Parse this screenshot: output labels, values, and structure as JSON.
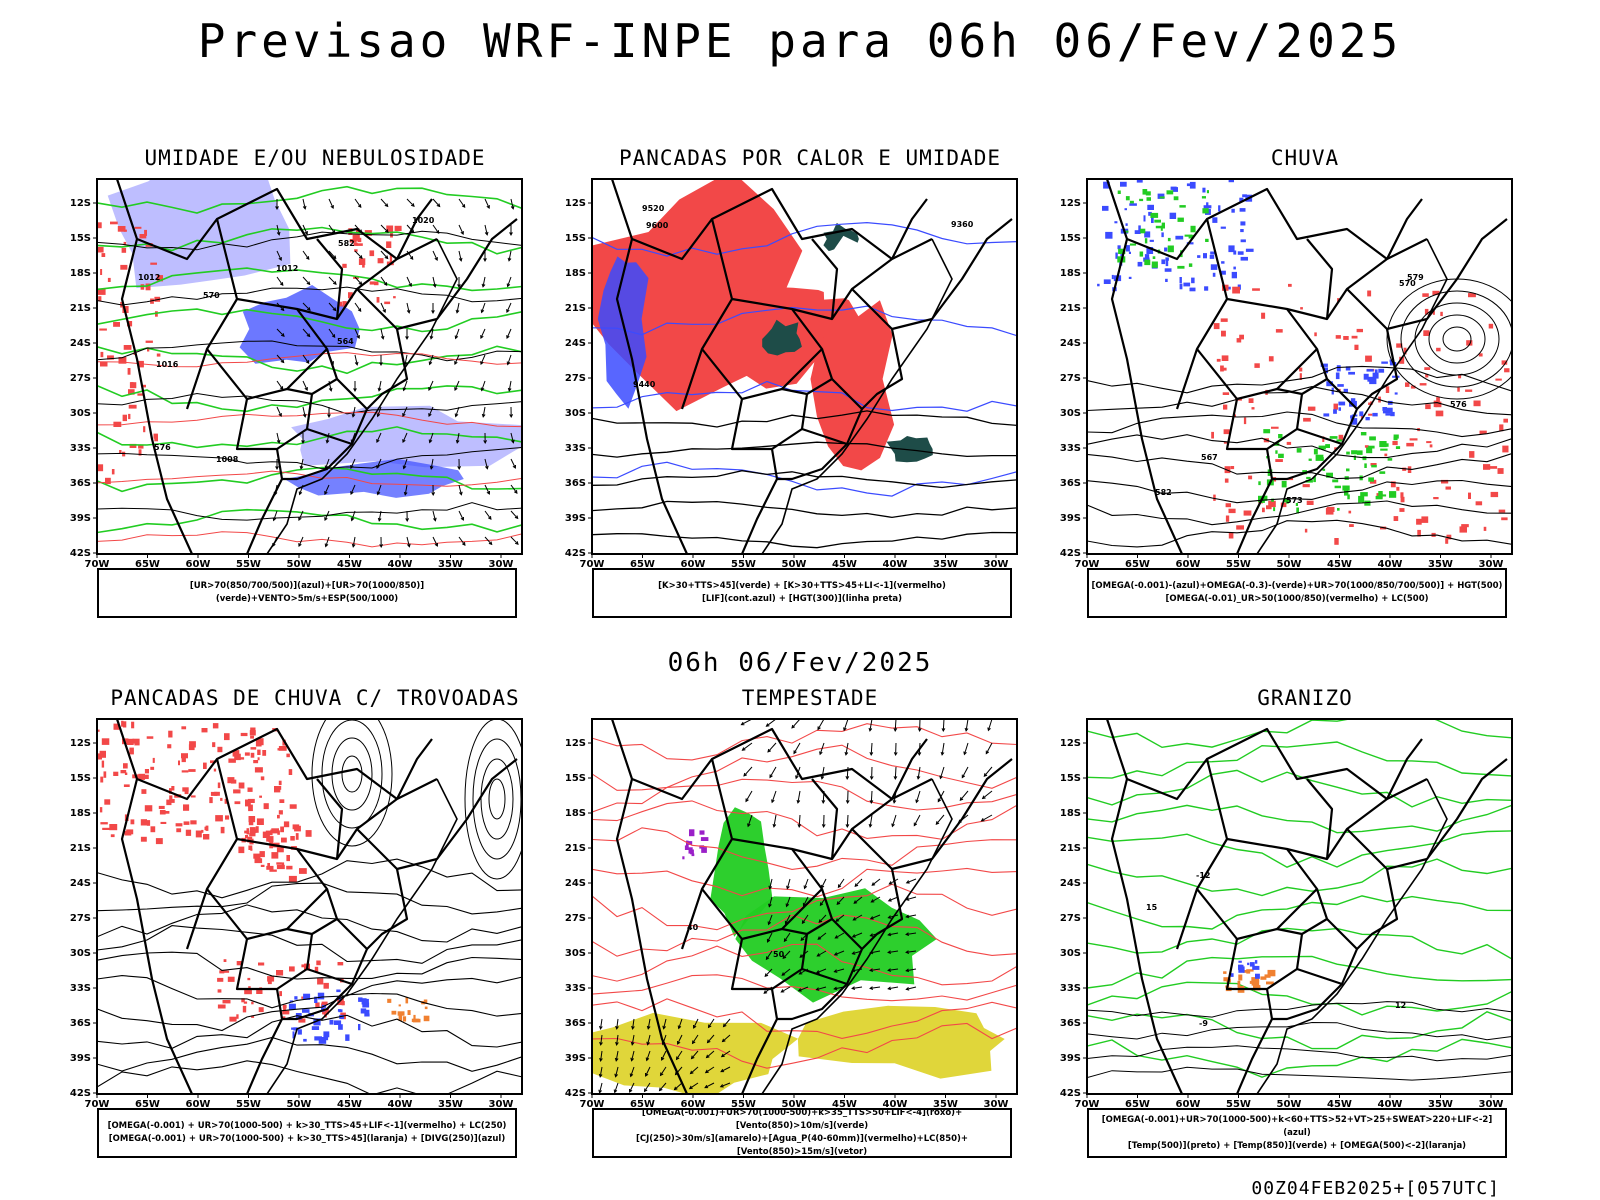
{
  "header": {
    "title": "Previsao WRF-INPE  para 06h 06/Fev/2025",
    "subtitle": "06h 06/Fev/2025",
    "footer": "00Z04FEB2025+[057UTC]"
  },
  "axes": {
    "lat_labels": [
      "12S",
      "15S",
      "18S",
      "21S",
      "24S",
      "27S",
      "30S",
      "33S",
      "36S",
      "39S",
      "42S"
    ],
    "lon_labels": [
      "70W",
      "65W",
      "60W",
      "55W",
      "50W",
      "45W",
      "40W",
      "35W",
      "30W"
    ]
  },
  "colors": {
    "blue": "#3b4bff",
    "light_blue": "#b7b7ff",
    "green": "#22cc22",
    "red": "#f24848",
    "dark_teal": "#1e4c48",
    "yellow": "#e0d63a",
    "orange": "#f08030",
    "purple": "#9a20c8"
  },
  "panels": [
    {
      "id": "umidade",
      "title": "UMIDADE E/OU NEBULOSIDADE",
      "legend": [
        "[UR>70(850/700/500)](azul)+[UR>70(1000/850)](verde)+VENTO>5m/s+ESP(500/1000)"
      ],
      "contour_labels": [
        "1012",
        "1008",
        "1016",
        "1012",
        "570",
        "576",
        "1020",
        "564",
        "582"
      ]
    },
    {
      "id": "pancadas_calor",
      "title": "PANCADAS POR CALOR E UMIDADE",
      "legend": [
        "[K>30+TTS>45](verde) + [K>30+TTS>45+LI<-1](vermelho)",
        "[LIF](cont.azul) + [HGT(300)](linha preta)"
      ],
      "contour_labels": [
        "9600",
        "9520",
        "9440",
        "9360"
      ]
    },
    {
      "id": "chuva",
      "title": "CHUVA",
      "legend": [
        "[OMEGA(-0.001)-(azul)+OMEGA(-0.3)-(verde)+UR>70(1000/850/700/500)] + HGT(500)",
        "[OMEGA(-0.01)_UR>50(1000/850)(vermelho) + LC(500)"
      ],
      "contour_labels": [
        "582",
        "579",
        "576",
        "573",
        "570",
        "567"
      ]
    },
    {
      "id": "trovoadas",
      "title": "PANCADAS DE CHUVA C/ TROVOADAS",
      "legend": [
        "[OMEGA(-0.001) + UR>70(1000-500) + k>30_TTS>45+LIF<-1](vermelho) + LC(250)",
        "[OMEGA(-0.001) + UR>70(1000-500) + k>30_TTS>45](laranja) + [DIVG(250)](azul)"
      ],
      "contour_labels": []
    },
    {
      "id": "tempestade",
      "title": "TEMPESTADE",
      "legend": [
        "[OMEGA(-0.001)+UR>70(1000-500)+k>35_TTS>50+LIF<-4](roxo)+[Vento(850)>10m/s](verde)",
        "[CJ(250)>30m/s](amarelo)+[Agua_P(40-60mm)](vermelho)+LC(850)+[Vento(850)>15m/s](vetor)"
      ],
      "contour_labels": [
        "40",
        "50"
      ]
    },
    {
      "id": "granizo",
      "title": "GRANIZO",
      "legend": [
        "[OMEGA(-0.001)+UR>70(1000-500)+k<60+TTS>52+VT>25+SWEAT>220+LIF<-2](azul)",
        "[Temp(500)](preto) + [Temp(850)](verde) + [OMEGA(500)<-2](laranja)"
      ],
      "contour_labels": [
        "-12",
        "-9",
        "12",
        "15"
      ]
    }
  ]
}
